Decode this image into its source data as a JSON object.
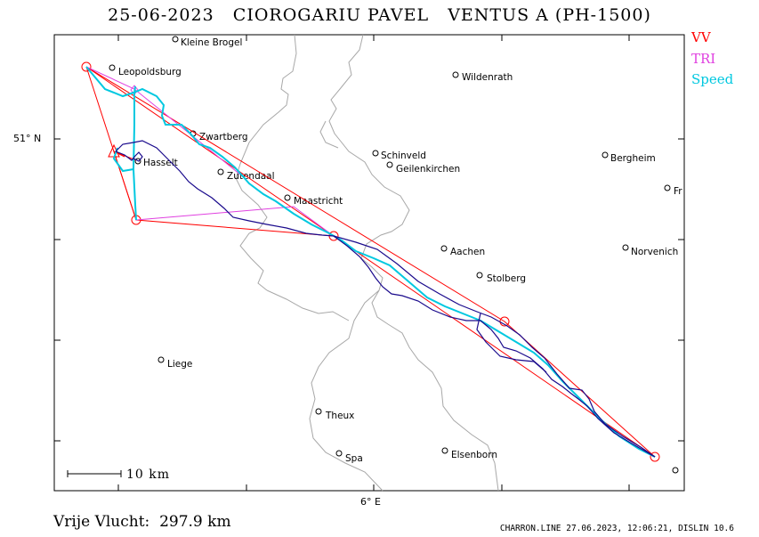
{
  "header": {
    "title": "25-06-2023   CIOROGARIU PAVEL   VENTUS A (PH-1500)"
  },
  "legend": {
    "items": [
      {
        "label": "VV",
        "color": "#ff0000"
      },
      {
        "label": "TRI",
        "color": "#e040e0"
      },
      {
        "label": "Speed",
        "color": "#00c8e0"
      }
    ]
  },
  "axes": {
    "lat_label": "51° N",
    "lon_label": "6° E"
  },
  "scale": {
    "label": "10 km"
  },
  "places": [
    {
      "name": "Kleine Brogel"
    },
    {
      "name": "Leopoldsburg"
    },
    {
      "name": "Wildenrath"
    },
    {
      "name": "Zwartberg"
    },
    {
      "name": "Schinveld"
    },
    {
      "name": "Geilenkirchen"
    },
    {
      "name": "Bergheim"
    },
    {
      "name": "Hasselt"
    },
    {
      "name": "Zutendaal"
    },
    {
      "name": "Maastricht"
    },
    {
      "name": "Fr"
    },
    {
      "name": "Aachen"
    },
    {
      "name": "Norvenich"
    },
    {
      "name": "Stolberg"
    },
    {
      "name": "Liege"
    },
    {
      "name": "Theux"
    },
    {
      "name": "Spa"
    },
    {
      "name": "Elsenborn"
    }
  ],
  "footer": {
    "distance": "Vrije Vlucht:  297.9 km",
    "credits": "CHARRON.LINE 27.06.2023, 12:06:21, DISLIN 10.6"
  },
  "colors": {
    "vv": "#ff0000",
    "tri": "#e040e0",
    "speed": "#00c8e0",
    "track": "#1a0a8c",
    "border": "#a0a0a0"
  }
}
